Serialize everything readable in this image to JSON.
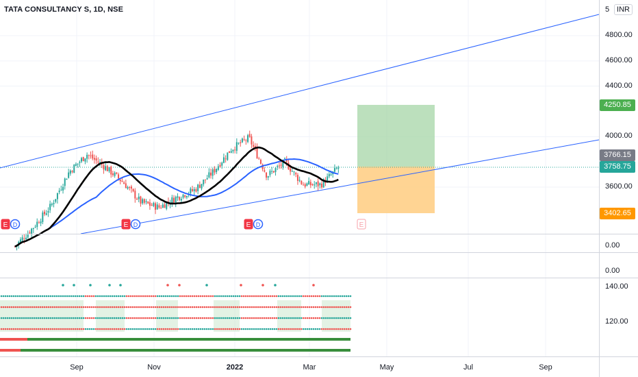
{
  "header": {
    "title": "TATA CONSULTANCY S, 1D, NSE",
    "currency": "INR"
  },
  "y_axis": {
    "price_ticks": [
      "4800.00",
      "4600.00",
      "4400.00",
      "4000.00",
      "3600.00"
    ],
    "indicator1_ticks": [
      "0.00"
    ],
    "indicator2_ticks": [
      "0.00"
    ],
    "indicator3_ticks": [
      "140.00",
      "120.00"
    ],
    "top_clipped_label": "5"
  },
  "price_tags": {
    "target": "4250.85",
    "last": "3766.15",
    "current": "3758.75",
    "stop": "3402.65"
  },
  "x_axis": {
    "labels": [
      "Sep",
      "Nov",
      "2022",
      "Mar",
      "May",
      "Jul",
      "Sep"
    ]
  },
  "earnings_markers": [
    "E",
    "E",
    "E",
    "E"
  ],
  "dividend_markers": [
    "D",
    "D",
    "D"
  ],
  "colors": {
    "up": "#26a69a",
    "down": "#ef5350",
    "channel": "#2962ff",
    "ma_long": "#2962ff",
    "ma_short": "#000000",
    "target_zone": "#a5d6a7",
    "stop_zone": "#ffcc80",
    "target_tag": "#4caf50",
    "stop_tag": "#ff9800",
    "last_tag": "#787b86",
    "current_tag": "#26a69a"
  },
  "chart_data": {
    "type": "candlestick",
    "x": [
      "2021-07-15",
      "2021-07-29",
      "2021-08-12",
      "2021-08-26",
      "2021-09-09",
      "2021-09-23",
      "2021-10-07",
      "2021-10-21",
      "2021-11-04",
      "2021-11-18",
      "2021-12-02",
      "2021-12-16",
      "2021-12-30",
      "2022-01-13",
      "2022-01-27",
      "2022-02-10",
      "2022-02-24",
      "2022-03-10",
      "2022-03-24"
    ],
    "close": [
      3130,
      3280,
      3450,
      3720,
      3860,
      3760,
      3640,
      3480,
      3440,
      3520,
      3580,
      3720,
      3900,
      3990,
      3690,
      3800,
      3620,
      3620,
      3758.75
    ],
    "trade_setup": {
      "entry": 3758.75,
      "target": 4250.85,
      "stop": 3402.65
    },
    "y_ticks": [
      3600,
      4000,
      4400,
      4600,
      4800
    ],
    "x_labels": [
      "Sep",
      "Nov",
      "2022",
      "Mar",
      "May",
      "Jul",
      "Sep"
    ],
    "grid": true,
    "legend": "none"
  }
}
